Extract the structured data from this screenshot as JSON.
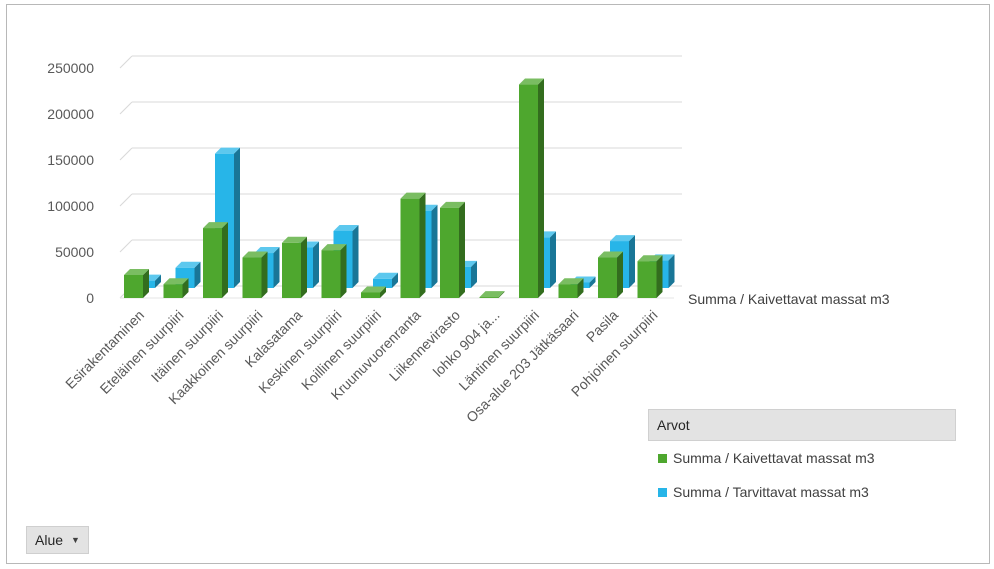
{
  "chart_data": {
    "type": "bar",
    "categories": [
      "Esirakentaminen",
      "Eteläinen suurpiiri",
      "Itäinen suurpiiri",
      "Kaakkoinen suurpiiri",
      "Kalasatama",
      "Keskinen suurpiiri",
      "Koillinen suurpiiri",
      "Kruunuvuorenranta",
      "Liikennevirasto",
      "lohko 904 ja...",
      "Läntinen suurpiiri",
      "Osa-alue 203 Jätkäsaari",
      "Pasila",
      "Pohjoinen suurpiiri"
    ],
    "series": [
      {
        "name": "Summa  / Kaivettavat massat m3",
        "color": "#4ea72e",
        "values": [
          25000,
          15000,
          76000,
          44000,
          60000,
          52000,
          6000,
          108000,
          98000,
          1000,
          232000,
          15000,
          44000,
          40000
        ]
      },
      {
        "name": "Summa  / Tarvittavat massat m3",
        "color": "#27b5e8",
        "values": [
          8000,
          22000,
          146000,
          38000,
          44000,
          62000,
          10000,
          84000,
          23000,
          0,
          55000,
          6000,
          51000,
          30000
        ]
      }
    ],
    "yticks": [
      "250000",
      "200000",
      "150000",
      "100000",
      "50000",
      "0"
    ],
    "ylim": [
      0,
      250000
    ],
    "grid": true,
    "depth_axis_label": "Summa  / Kaivettavat massat m3",
    "legend": {
      "title": "Arvot",
      "position": "bottom-right"
    }
  },
  "filter_button": {
    "label": "Alue",
    "icon": "dropdown-arrow-icon",
    "caret": "▼"
  }
}
